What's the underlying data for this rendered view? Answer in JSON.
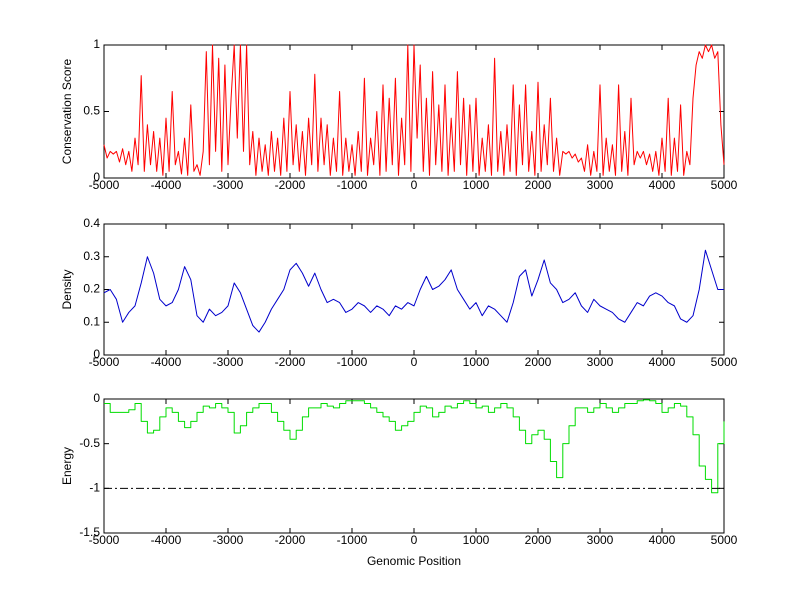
{
  "chart_data": [
    {
      "type": "line",
      "ylabel": "Conservation Score",
      "x": [
        -5000,
        -4950,
        -4900,
        -4850,
        -4800,
        -4750,
        -4700,
        -4650,
        -4600,
        -4550,
        -4500,
        -4450,
        -4400,
        -4350,
        -4300,
        -4250,
        -4200,
        -4150,
        -4100,
        -4050,
        -4000,
        -3950,
        -3900,
        -3850,
        -3800,
        -3750,
        -3700,
        -3650,
        -3600,
        -3550,
        -3500,
        -3450,
        -3400,
        -3350,
        -3300,
        -3250,
        -3200,
        -3150,
        -3100,
        -3050,
        -3000,
        -2950,
        -2900,
        -2850,
        -2800,
        -2750,
        -2700,
        -2650,
        -2600,
        -2550,
        -2500,
        -2450,
        -2400,
        -2350,
        -2300,
        -2250,
        -2200,
        -2150,
        -2100,
        -2050,
        -2000,
        -1950,
        -1900,
        -1850,
        -1800,
        -1750,
        -1700,
        -1650,
        -1600,
        -1550,
        -1500,
        -1450,
        -1400,
        -1350,
        -1300,
        -1250,
        -1200,
        -1150,
        -1100,
        -1050,
        -1000,
        -950,
        -900,
        -850,
        -800,
        -750,
        -700,
        -650,
        -600,
        -550,
        -500,
        -450,
        -400,
        -350,
        -300,
        -250,
        -200,
        -150,
        -100,
        -50,
        0,
        50,
        100,
        150,
        200,
        250,
        300,
        350,
        400,
        450,
        500,
        550,
        600,
        650,
        700,
        750,
        800,
        850,
        900,
        950,
        1000,
        1050,
        1100,
        1150,
        1200,
        1250,
        1300,
        1350,
        1400,
        1450,
        1500,
        1550,
        1600,
        1650,
        1700,
        1750,
        1800,
        1850,
        1900,
        1950,
        2000,
        2050,
        2100,
        2150,
        2200,
        2250,
        2300,
        2350,
        2400,
        2450,
        2500,
        2550,
        2600,
        2650,
        2700,
        2750,
        2800,
        2850,
        2900,
        2950,
        3000,
        3050,
        3100,
        3150,
        3200,
        3250,
        3300,
        3350,
        3400,
        3450,
        3500,
        3550,
        3600,
        3650,
        3700,
        3750,
        3800,
        3850,
        3900,
        3950,
        4000,
        4050,
        4100,
        4150,
        4200,
        4250,
        4300,
        4350,
        4400,
        4450,
        4500,
        4550,
        4600,
        4650,
        4700,
        4750,
        4800,
        4850,
        4900,
        4950,
        5000
      ],
      "series": [
        {
          "color": "#ff0000",
          "values": [
            0.25,
            0.15,
            0.2,
            0.18,
            0.2,
            0.12,
            0.22,
            0.1,
            0.2,
            0.05,
            0.3,
            0.1,
            0.77,
            0.05,
            0.4,
            0.1,
            0.35,
            0.05,
            0.3,
            0.02,
            0.45,
            0.05,
            0.65,
            0.1,
            0.2,
            0.03,
            0.3,
            0.02,
            0.55,
            0.05,
            0.1,
            0.02,
            0.2,
            0.95,
            0.1,
            1,
            0.2,
            0.9,
            0.05,
            0.85,
            0.1,
            0.6,
            1,
            0.3,
            1,
            0.2,
            1,
            0.1,
            0.35,
            0.02,
            0.3,
            0.05,
            0.25,
            0.02,
            0.35,
            0.05,
            0.3,
            0.02,
            0.45,
            0.05,
            0.65,
            0.1,
            0.4,
            0.05,
            0.35,
            0.02,
            0.45,
            0.1,
            0.78,
            0.05,
            0.45,
            0.1,
            0.4,
            0.02,
            0.3,
            0.05,
            0.65,
            0.02,
            0.3,
            0.05,
            0.25,
            0.02,
            0.35,
            0.05,
            0.75,
            0.02,
            0.3,
            0.1,
            0.5,
            0.02,
            0.7,
            0.05,
            0.6,
            0.1,
            0.75,
            0.02,
            0.45,
            0.1,
            1,
            0.05,
            1,
            0.3,
            0.85,
            0.05,
            0.6,
            0.02,
            0.8,
            0.1,
            0.55,
            0.05,
            0.7,
            0.02,
            0.45,
            0.05,
            0.8,
            0.1,
            0.6,
            0.02,
            0.55,
            0.05,
            0.6,
            0.02,
            0.3,
            0.05,
            0.4,
            0.02,
            0.9,
            0.05,
            0.35,
            0.02,
            0.4,
            0.05,
            0.7,
            0.02,
            0.55,
            0.1,
            0.7,
            0.05,
            0.35,
            0.02,
            0.72,
            0.05,
            0.4,
            0.1,
            0.6,
            0.05,
            0.3,
            0.02,
            0.2,
            0.18,
            0.2,
            0.15,
            0.18,
            0.12,
            0.15,
            0.05,
            0.25,
            0.02,
            0.2,
            0.05,
            0.7,
            0.02,
            0.3,
            0.05,
            0.25,
            0.02,
            0.7,
            0.05,
            0.35,
            0.02,
            0.6,
            0.1,
            0.2,
            0.15,
            0.2,
            0.1,
            0.18,
            0.05,
            0.2,
            0.02,
            0.3,
            0.05,
            0.6,
            0.02,
            0.3,
            0.05,
            0.55,
            0.02,
            0.2,
            0.1,
            0.6,
            0.85,
            0.95,
            0.9,
            1,
            0.95,
            1,
            0.9,
            0.95,
            0.4,
            0.1
          ]
        }
      ],
      "xlim": [
        -5000,
        5000
      ],
      "xticks": [
        -5000,
        -4000,
        -3000,
        -2000,
        -1000,
        0,
        1000,
        2000,
        3000,
        4000,
        5000
      ],
      "ylim": [
        0,
        1
      ],
      "yticks": [
        0,
        0.5,
        1
      ]
    },
    {
      "type": "line",
      "ylabel": "Density",
      "x": [
        -5000,
        -4900,
        -4800,
        -4700,
        -4600,
        -4500,
        -4400,
        -4300,
        -4200,
        -4100,
        -4000,
        -3900,
        -3800,
        -3700,
        -3600,
        -3500,
        -3400,
        -3300,
        -3200,
        -3100,
        -3000,
        -2900,
        -2800,
        -2700,
        -2600,
        -2500,
        -2400,
        -2300,
        -2200,
        -2100,
        -2000,
        -1900,
        -1800,
        -1700,
        -1600,
        -1500,
        -1400,
        -1300,
        -1200,
        -1100,
        -1000,
        -900,
        -800,
        -700,
        -600,
        -500,
        -400,
        -300,
        -200,
        -100,
        0,
        100,
        200,
        300,
        400,
        500,
        600,
        700,
        800,
        900,
        1000,
        1100,
        1200,
        1300,
        1400,
        1500,
        1600,
        1700,
        1800,
        1900,
        2000,
        2100,
        2200,
        2300,
        2400,
        2500,
        2600,
        2700,
        2800,
        2900,
        3000,
        3100,
        3200,
        3300,
        3400,
        3500,
        3600,
        3700,
        3800,
        3900,
        4000,
        4100,
        4200,
        4300,
        4400,
        4500,
        4600,
        4700,
        4800,
        4900,
        5000
      ],
      "series": [
        {
          "color": "#0000cc",
          "values": [
            0.19,
            0.2,
            0.17,
            0.1,
            0.13,
            0.15,
            0.22,
            0.3,
            0.25,
            0.17,
            0.15,
            0.16,
            0.2,
            0.27,
            0.23,
            0.12,
            0.1,
            0.14,
            0.12,
            0.13,
            0.15,
            0.22,
            0.19,
            0.14,
            0.09,
            0.07,
            0.1,
            0.14,
            0.17,
            0.2,
            0.26,
            0.28,
            0.25,
            0.21,
            0.25,
            0.2,
            0.16,
            0.17,
            0.16,
            0.13,
            0.14,
            0.16,
            0.15,
            0.13,
            0.15,
            0.14,
            0.12,
            0.15,
            0.14,
            0.16,
            0.15,
            0.2,
            0.24,
            0.2,
            0.21,
            0.23,
            0.26,
            0.2,
            0.17,
            0.14,
            0.16,
            0.12,
            0.15,
            0.14,
            0.12,
            0.1,
            0.16,
            0.24,
            0.26,
            0.18,
            0.23,
            0.29,
            0.22,
            0.2,
            0.16,
            0.17,
            0.19,
            0.15,
            0.13,
            0.17,
            0.15,
            0.14,
            0.13,
            0.11,
            0.1,
            0.13,
            0.16,
            0.15,
            0.18,
            0.19,
            0.18,
            0.16,
            0.15,
            0.11,
            0.1,
            0.12,
            0.2,
            0.32,
            0.26,
            0.2,
            0.2
          ]
        }
      ],
      "xlim": [
        -5000,
        5000
      ],
      "xticks": [
        -5000,
        -4000,
        -3000,
        -2000,
        -1000,
        0,
        1000,
        2000,
        3000,
        4000,
        5000
      ],
      "ylim": [
        0,
        0.4
      ],
      "yticks": [
        0,
        0.1,
        0.2,
        0.3,
        0.4
      ]
    },
    {
      "type": "line",
      "ylabel": "Energy",
      "xlabel": "Genomic Position",
      "drawstyle": "steps",
      "x": [
        -5000,
        -4900,
        -4800,
        -4700,
        -4600,
        -4500,
        -4400,
        -4300,
        -4200,
        -4100,
        -4000,
        -3900,
        -3800,
        -3700,
        -3600,
        -3500,
        -3400,
        -3300,
        -3200,
        -3100,
        -3000,
        -2900,
        -2800,
        -2700,
        -2600,
        -2500,
        -2400,
        -2300,
        -2200,
        -2100,
        -2000,
        -1900,
        -1800,
        -1700,
        -1600,
        -1500,
        -1400,
        -1300,
        -1200,
        -1100,
        -1000,
        -900,
        -800,
        -700,
        -600,
        -500,
        -400,
        -300,
        -200,
        -100,
        0,
        100,
        200,
        300,
        400,
        500,
        600,
        700,
        800,
        900,
        1000,
        1100,
        1200,
        1300,
        1400,
        1500,
        1600,
        1700,
        1800,
        1900,
        2000,
        2100,
        2200,
        2300,
        2400,
        2500,
        2600,
        2700,
        2800,
        2900,
        3000,
        3100,
        3200,
        3300,
        3400,
        3500,
        3600,
        3700,
        3800,
        3900,
        4000,
        4100,
        4200,
        4300,
        4400,
        4500,
        4600,
        4700,
        4800,
        4900,
        5000
      ],
      "series": [
        {
          "color": "#00dd00",
          "values": [
            -0.05,
            -0.15,
            -0.15,
            -0.15,
            -0.12,
            -0.05,
            -0.25,
            -0.38,
            -0.35,
            -0.2,
            -0.1,
            -0.15,
            -0.25,
            -0.32,
            -0.25,
            -0.15,
            -0.08,
            -0.1,
            -0.05,
            -0.1,
            -0.15,
            -0.38,
            -0.3,
            -0.15,
            -0.1,
            -0.05,
            -0.05,
            -0.15,
            -0.25,
            -0.35,
            -0.45,
            -0.35,
            -0.2,
            -0.1,
            -0.1,
            -0.05,
            -0.08,
            -0.1,
            -0.05,
            -0.02,
            -0.02,
            -0.02,
            -0.05,
            -0.1,
            -0.15,
            -0.2,
            -0.25,
            -0.35,
            -0.3,
            -0.25,
            -0.15,
            -0.08,
            -0.1,
            -0.2,
            -0.15,
            -0.08,
            -0.1,
            -0.05,
            -0.02,
            -0.05,
            -0.1,
            -0.08,
            -0.15,
            -0.1,
            -0.05,
            -0.1,
            -0.2,
            -0.35,
            -0.5,
            -0.4,
            -0.35,
            -0.45,
            -0.7,
            -0.88,
            -0.5,
            -0.3,
            -0.1,
            -0.1,
            -0.15,
            -0.1,
            -0.05,
            -0.1,
            -0.15,
            -0.1,
            -0.05,
            -0.05,
            -0.02,
            -0.01,
            -0.02,
            -0.05,
            -0.15,
            -0.1,
            -0.05,
            -0.08,
            -0.2,
            -0.4,
            -0.75,
            -0.9,
            -1.05,
            -0.5,
            -0.25
          ]
        }
      ],
      "reference_line": {
        "value": -1,
        "color": "#000000",
        "style": "dashdot"
      },
      "xlim": [
        -5000,
        5000
      ],
      "xticks": [
        -5000,
        -4000,
        -3000,
        -2000,
        -1000,
        0,
        1000,
        2000,
        3000,
        4000,
        5000
      ],
      "ylim": [
        -1.5,
        0
      ],
      "yticks": [
        -1.5,
        -1,
        -0.5,
        0
      ]
    }
  ]
}
